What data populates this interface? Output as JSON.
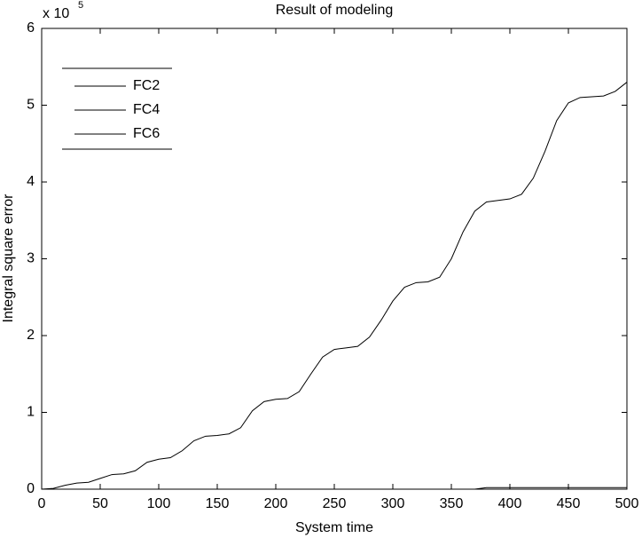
{
  "chart_data": {
    "type": "line",
    "title": "Result of modeling",
    "x_label": "System time",
    "y_label": "Integral square error",
    "y_multiplier": "x 10",
    "y_exponent": "5",
    "x": [
      0,
      10,
      20,
      30,
      40,
      50,
      60,
      70,
      80,
      90,
      100,
      110,
      120,
      130,
      140,
      150,
      160,
      170,
      180,
      190,
      200,
      210,
      220,
      230,
      240,
      250,
      260,
      270,
      280,
      290,
      300,
      310,
      320,
      330,
      340,
      350,
      360,
      370,
      380,
      390,
      400,
      410,
      420,
      430,
      440,
      450,
      460,
      470,
      480,
      490,
      500
    ],
    "series": [
      {
        "name": "FC2",
        "color": "#000000",
        "values": [
          0,
          0.01,
          0.05,
          0.08,
          0.09,
          0.14,
          0.19,
          0.2,
          0.24,
          0.35,
          0.39,
          0.41,
          0.5,
          0.63,
          0.69,
          0.7,
          0.72,
          0.8,
          1.02,
          1.14,
          1.17,
          1.18,
          1.27,
          1.5,
          1.72,
          1.82,
          1.84,
          1.86,
          1.98,
          2.2,
          2.45,
          2.63,
          2.69,
          2.7,
          2.76,
          3.0,
          3.35,
          3.62,
          3.74,
          3.76,
          3.78,
          3.84,
          4.05,
          4.4,
          4.8,
          5.03,
          5.1,
          5.11,
          5.12,
          5.18,
          5.3
        ]
      },
      {
        "name": "FC4",
        "color": "#000000",
        "values": [
          0,
          0,
          0,
          0,
          0,
          0,
          0,
          0,
          0,
          0,
          0,
          0,
          0,
          0,
          0,
          0,
          0,
          0,
          0,
          0,
          0,
          0,
          0,
          0,
          0,
          0,
          0,
          0,
          0,
          0,
          0,
          0,
          0,
          0,
          0,
          0,
          0,
          0,
          0.02,
          0.02,
          0.02,
          0.02,
          0.02,
          0.02,
          0.02,
          0.02,
          0.02,
          0.02,
          0.02,
          0.02,
          0.02
        ]
      },
      {
        "name": "FC6",
        "color": "#000000",
        "values": [
          0,
          0,
          0,
          0,
          0,
          0,
          0,
          0,
          0,
          0,
          0,
          0,
          0,
          0,
          0,
          0,
          0,
          0,
          0,
          0,
          0,
          0,
          0,
          0,
          0,
          0,
          0,
          0,
          0,
          0,
          0,
          0,
          0,
          0,
          0,
          0,
          0,
          0,
          0,
          0,
          0,
          0,
          0,
          0,
          0,
          0,
          0,
          0,
          0,
          0,
          0
        ]
      }
    ],
    "xlim": [
      0,
      500
    ],
    "xticks": [
      0,
      50,
      100,
      150,
      200,
      250,
      300,
      350,
      400,
      450,
      500
    ],
    "ylim": [
      0,
      6
    ],
    "yticks": [
      0,
      1,
      2,
      3,
      4,
      5,
      6
    ],
    "legend": "upper left"
  }
}
